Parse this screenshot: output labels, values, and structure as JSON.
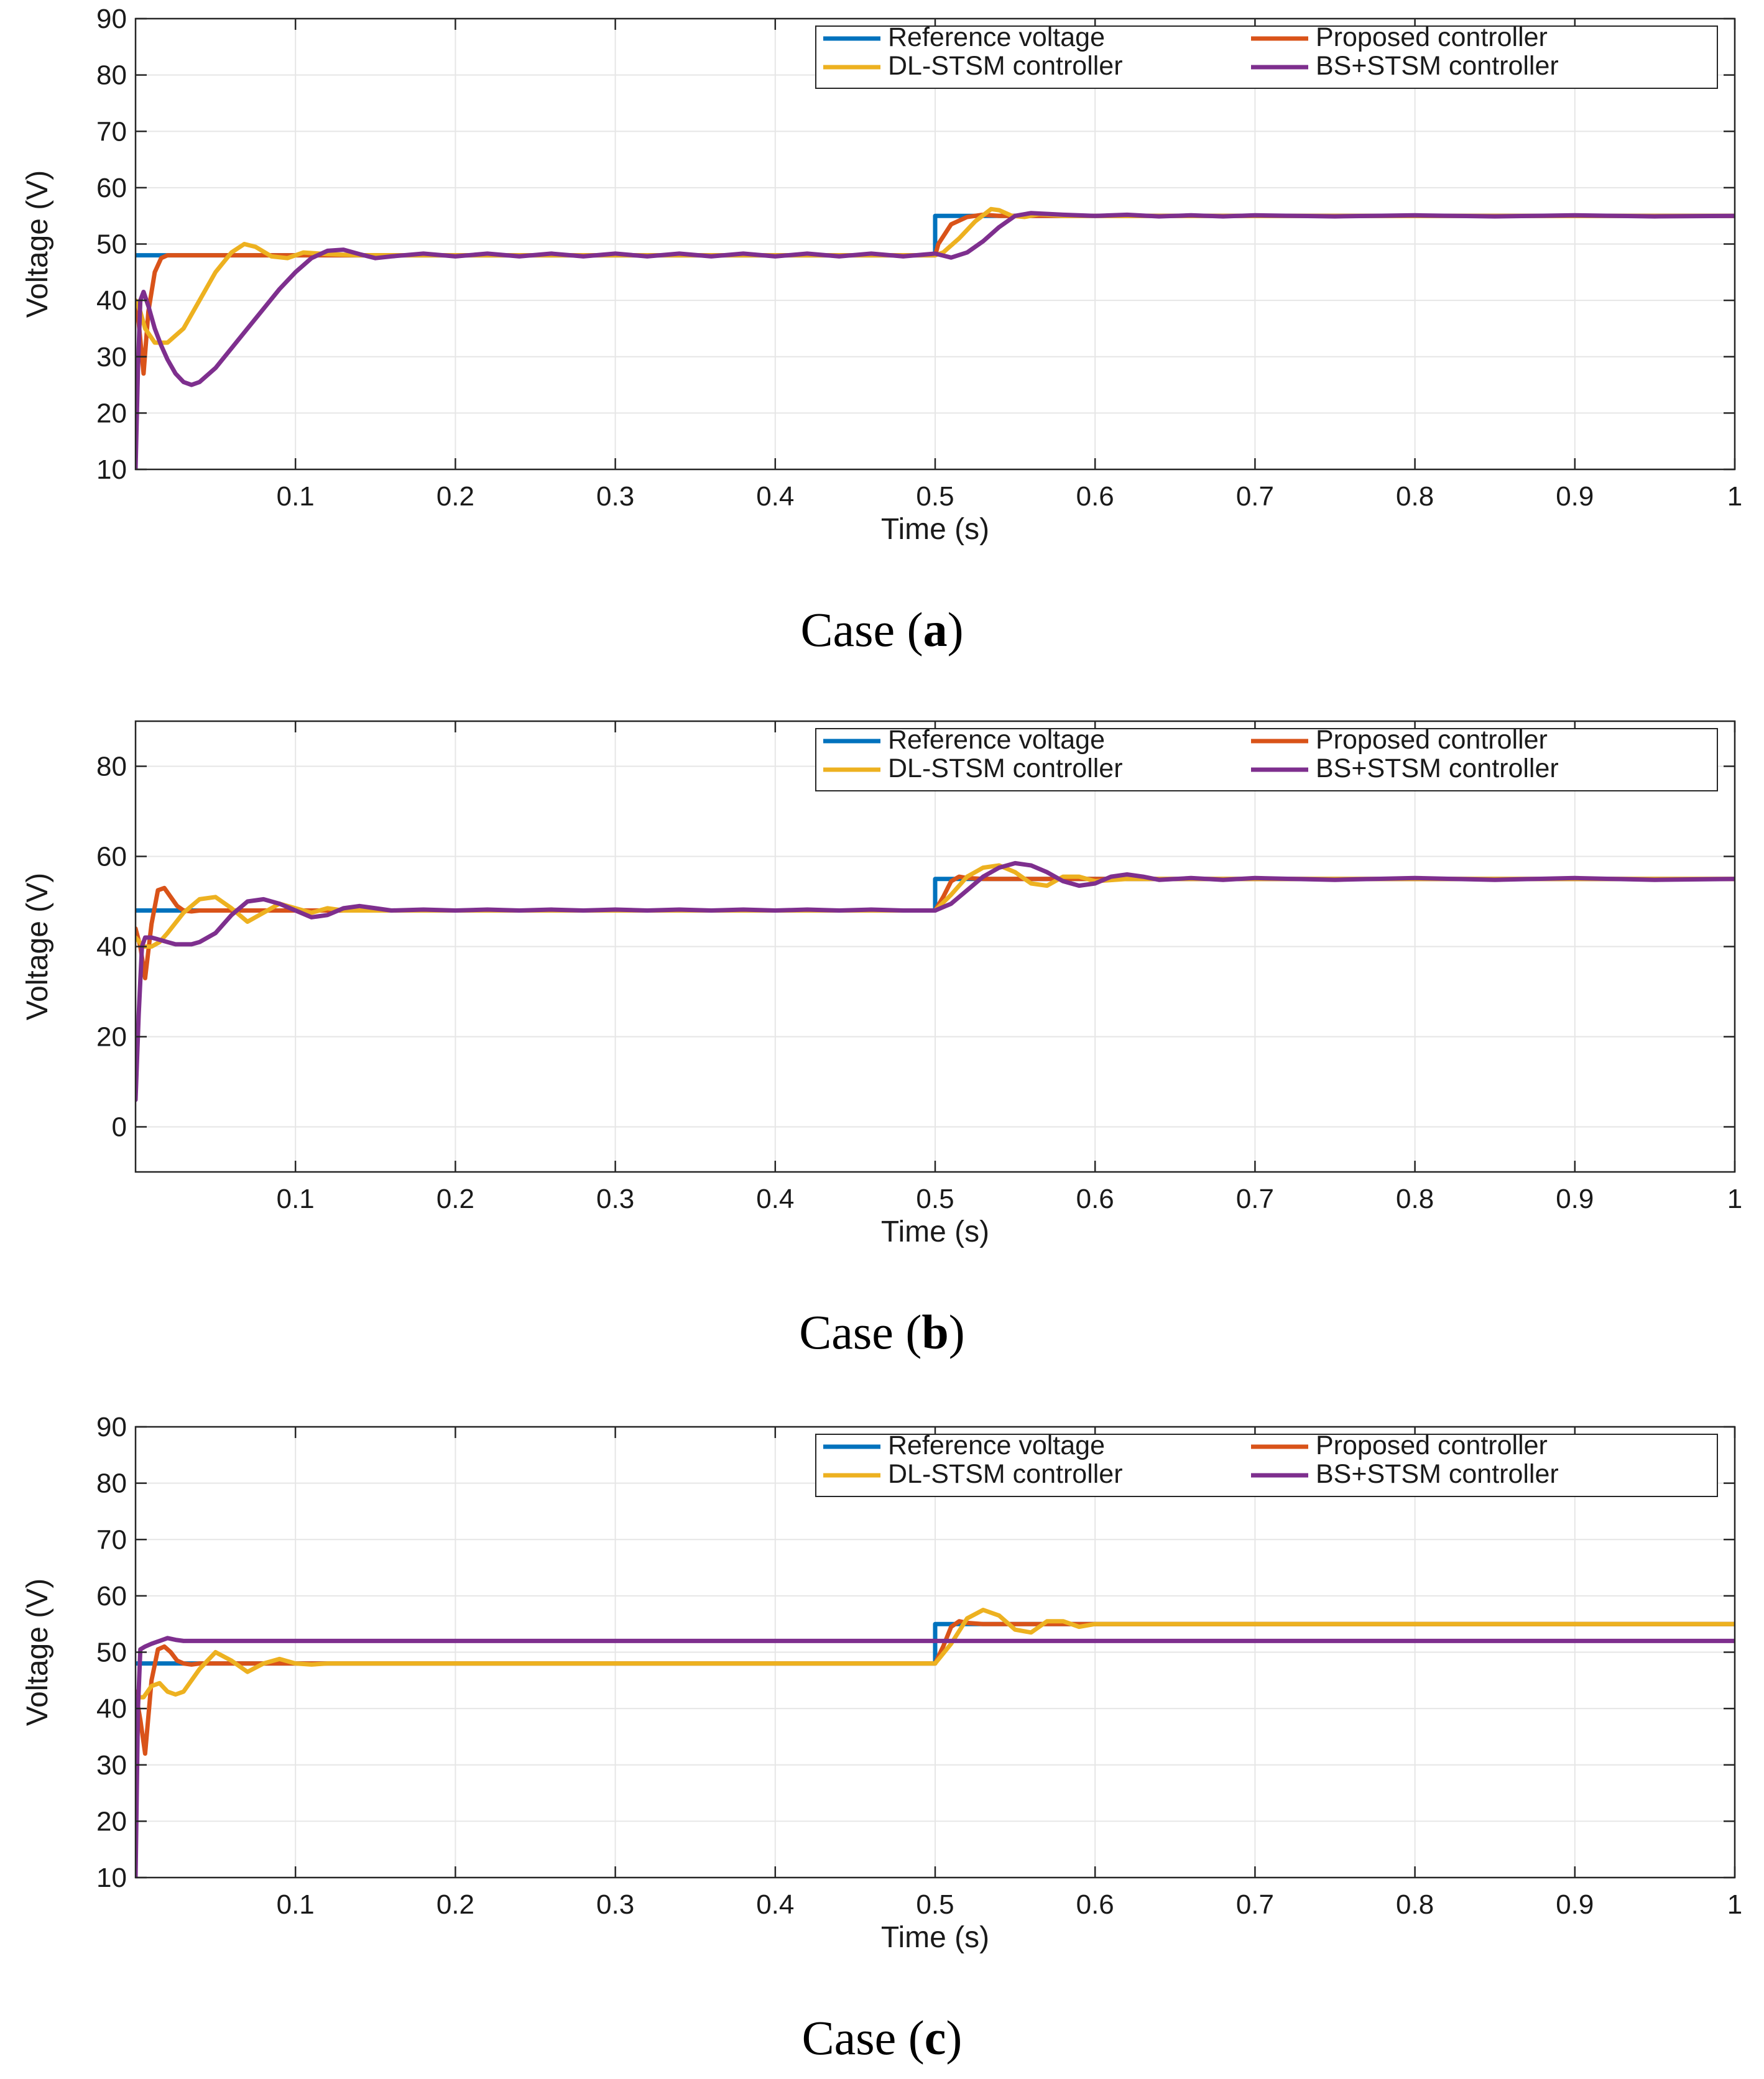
{
  "colors": {
    "reference": "#0072BD",
    "proposed": "#D95319",
    "dl_stsm": "#EDB120",
    "bs_stsm": "#7E2F8E"
  },
  "chart_data": [
    {
      "type": "line",
      "caption_prefix": "Case (",
      "caption_letter": "a",
      "caption_suffix": ")",
      "xlabel": "Time (s)",
      "ylabel": "Voltage (V)",
      "xlim": [
        0,
        1
      ],
      "ylim": [
        10,
        90
      ],
      "xticks": [
        0.1,
        0.2,
        0.3,
        0.4,
        0.5,
        0.6,
        0.7,
        0.8,
        0.9,
        1
      ],
      "xtick_labels": [
        "0.1",
        "0.2",
        "0.3",
        "0.4",
        "0.5",
        "0.6",
        "0.7",
        "0.8",
        "0.9",
        "1"
      ],
      "yticks": [
        10,
        20,
        30,
        40,
        50,
        60,
        70,
        80,
        90
      ],
      "ytick_labels": [
        "10",
        "20",
        "30",
        "40",
        "50",
        "60",
        "70",
        "80",
        "90"
      ],
      "grid": true,
      "legend_position": "top-right",
      "legend": [
        "Reference voltage",
        "Proposed controller",
        "DL-STSM controller",
        "BS+STSM controller"
      ],
      "series": [
        {
          "name": "Reference voltage",
          "x": [
            0,
            0.5,
            0.5,
            1
          ],
          "y": [
            48,
            48,
            55,
            55
          ]
        },
        {
          "name": "Proposed controller",
          "x": [
            0,
            0.002,
            0.005,
            0.008,
            0.012,
            0.016,
            0.02,
            0.03,
            0.5,
            0.502,
            0.51,
            0.52,
            0.53,
            0.54,
            0.55,
            0.56,
            1
          ],
          "y": [
            39,
            36,
            27,
            38,
            45,
            47.5,
            48,
            48,
            48,
            50,
            53.5,
            54.8,
            55.2,
            55,
            55,
            55,
            55
          ]
        },
        {
          "name": "DL-STSM controller",
          "x": [
            0,
            0.003,
            0.006,
            0.012,
            0.02,
            0.03,
            0.04,
            0.05,
            0.06,
            0.068,
            0.075,
            0.085,
            0.095,
            0.105,
            0.12,
            0.14,
            0.5,
            0.505,
            0.515,
            0.525,
            0.535,
            0.54,
            0.548,
            0.556,
            0.565,
            0.58,
            1
          ],
          "y": [
            40,
            38,
            35,
            32.5,
            32.5,
            35,
            40,
            45,
            48.5,
            50,
            49.5,
            47.8,
            47.5,
            48.5,
            48.2,
            48,
            48,
            48.5,
            51,
            54,
            56.2,
            56,
            55,
            54.8,
            55.3,
            55,
            55
          ]
        },
        {
          "name": "BS+STSM controller",
          "x": [
            0,
            0.0015,
            0.003,
            0.005,
            0.008,
            0.012,
            0.016,
            0.02,
            0.025,
            0.03,
            0.035,
            0.04,
            0.05,
            0.06,
            0.07,
            0.08,
            0.09,
            0.1,
            0.11,
            0.12,
            0.13,
            0.14,
            0.15,
            0.16,
            0.18,
            0.2,
            0.22,
            0.24,
            0.26,
            0.28,
            0.3,
            0.32,
            0.34,
            0.36,
            0.38,
            0.4,
            0.42,
            0.44,
            0.46,
            0.48,
            0.5,
            0.51,
            0.52,
            0.53,
            0.54,
            0.55,
            0.56,
            0.58,
            0.6,
            0.62,
            0.64,
            0.66,
            0.68,
            0.7,
            0.75,
            0.8,
            0.85,
            0.9,
            0.95,
            1
          ],
          "y": [
            10,
            28,
            40,
            41.5,
            39,
            35,
            32,
            29.5,
            27,
            25.5,
            25,
            25.5,
            28,
            31.5,
            35,
            38.5,
            42,
            45,
            47.5,
            48.8,
            49,
            48.2,
            47.5,
            47.8,
            48.3,
            47.8,
            48.3,
            47.8,
            48.3,
            47.8,
            48.3,
            47.8,
            48.3,
            47.8,
            48.3,
            47.8,
            48.3,
            47.8,
            48.3,
            47.8,
            48.3,
            47.6,
            48.5,
            50.5,
            53,
            55,
            55.5,
            55.2,
            55,
            55.2,
            54.9,
            55.1,
            54.9,
            55.1,
            54.9,
            55.1,
            54.9,
            55.1,
            54.9,
            55
          ]
        }
      ]
    },
    {
      "type": "line",
      "caption_prefix": "Case (",
      "caption_letter": "b",
      "caption_suffix": ")",
      "xlabel": "Time (s)",
      "ylabel": "Voltage (V)",
      "xlim": [
        0,
        1
      ],
      "ylim": [
        -10,
        90
      ],
      "xticks": [
        0.1,
        0.2,
        0.3,
        0.4,
        0.5,
        0.6,
        0.7,
        0.8,
        0.9,
        1
      ],
      "xtick_labels": [
        "0.1",
        "0.2",
        "0.3",
        "0.4",
        "0.5",
        "0.6",
        "0.7",
        "0.8",
        "0.9",
        "1"
      ],
      "yticks": [
        0,
        20,
        40,
        60,
        80
      ],
      "ytick_labels": [
        "0",
        "20",
        "40",
        "60",
        "80"
      ],
      "grid": true,
      "legend_position": "top-right",
      "legend": [
        "Reference voltage",
        "Proposed controller",
        "DL-STSM controller",
        "BS+STSM controller"
      ],
      "series": [
        {
          "name": "Reference voltage",
          "x": [
            0,
            0.5,
            0.5,
            1
          ],
          "y": [
            48,
            48,
            55,
            55
          ]
        },
        {
          "name": "Proposed controller",
          "x": [
            0,
            0.003,
            0.006,
            0.01,
            0.014,
            0.018,
            0.022,
            0.026,
            0.03,
            0.035,
            0.04,
            0.05,
            0.5,
            0.505,
            0.51,
            0.515,
            0.52,
            0.53,
            0.54,
            1
          ],
          "y": [
            44,
            40,
            33,
            45,
            52.5,
            53,
            51,
            49,
            48,
            47.8,
            48,
            48,
            48,
            51,
            54.5,
            55.5,
            55.2,
            55,
            55,
            55
          ]
        },
        {
          "name": "DL-STSM controller",
          "x": [
            0,
            0.005,
            0.01,
            0.015,
            0.02,
            0.03,
            0.04,
            0.05,
            0.06,
            0.07,
            0.08,
            0.09,
            0.1,
            0.11,
            0.12,
            0.13,
            0.15,
            0.5,
            0.51,
            0.52,
            0.53,
            0.54,
            0.55,
            0.56,
            0.57,
            0.58,
            0.59,
            0.6,
            0.62,
            1
          ],
          "y": [
            42,
            40,
            40,
            41,
            43,
            47.5,
            50.5,
            51,
            48.5,
            45.5,
            47.5,
            49.5,
            48.5,
            47.5,
            48.5,
            48,
            48,
            48,
            51.5,
            55.5,
            57.5,
            58,
            56.5,
            54,
            53.5,
            55.5,
            55.5,
            54.5,
            55,
            55
          ]
        },
        {
          "name": "BS+STSM controller",
          "x": [
            0,
            0.002,
            0.004,
            0.006,
            0.01,
            0.015,
            0.02,
            0.025,
            0.03,
            0.035,
            0.04,
            0.05,
            0.06,
            0.07,
            0.08,
            0.09,
            0.1,
            0.11,
            0.12,
            0.13,
            0.14,
            0.15,
            0.16,
            0.18,
            0.2,
            0.22,
            0.24,
            0.26,
            0.28,
            0.3,
            0.32,
            0.34,
            0.36,
            0.38,
            0.4,
            0.42,
            0.44,
            0.46,
            0.48,
            0.5,
            0.51,
            0.52,
            0.53,
            0.54,
            0.55,
            0.56,
            0.57,
            0.58,
            0.59,
            0.6,
            0.61,
            0.62,
            0.63,
            0.64,
            0.66,
            0.68,
            0.7,
            0.75,
            0.8,
            0.85,
            0.9,
            0.95,
            1
          ],
          "y": [
            6,
            25,
            40,
            42,
            42,
            41.5,
            41,
            40.5,
            40.5,
            40.5,
            41,
            43,
            47,
            50,
            50.5,
            49.5,
            48,
            46.5,
            47,
            48.5,
            49,
            48.5,
            48,
            48.2,
            48,
            48.2,
            48,
            48.2,
            48,
            48.2,
            48,
            48.2,
            48,
            48.2,
            48,
            48.2,
            48,
            48.2,
            48,
            48,
            49.5,
            52.5,
            55.5,
            57.5,
            58.5,
            58,
            56.5,
            54.5,
            53.5,
            54,
            55.5,
            56,
            55.5,
            54.8,
            55.2,
            54.8,
            55.2,
            54.8,
            55.2,
            54.8,
            55.2,
            54.8,
            55
          ]
        }
      ]
    },
    {
      "type": "line",
      "caption_prefix": "Case (",
      "caption_letter": "c",
      "caption_suffix": ")",
      "xlabel": "Time (s)",
      "ylabel": "Voltage (V)",
      "xlim": [
        0,
        1
      ],
      "ylim": [
        10,
        90
      ],
      "xticks": [
        0.1,
        0.2,
        0.3,
        0.4,
        0.5,
        0.6,
        0.7,
        0.8,
        0.9,
        1
      ],
      "xtick_labels": [
        "0.1",
        "0.2",
        "0.3",
        "0.4",
        "0.5",
        "0.6",
        "0.7",
        "0.8",
        "0.9",
        "1"
      ],
      "yticks": [
        10,
        20,
        30,
        40,
        50,
        60,
        70,
        80,
        90
      ],
      "ytick_labels": [
        "10",
        "20",
        "30",
        "40",
        "50",
        "60",
        "70",
        "80",
        "90"
      ],
      "grid": true,
      "legend_position": "top-right",
      "legend": [
        "Reference voltage",
        "Proposed controller",
        "DL-STSM controller",
        "BS+STSM controller"
      ],
      "series": [
        {
          "name": "Reference voltage",
          "x": [
            0,
            0.5,
            0.5,
            1
          ],
          "y": [
            48,
            48,
            55,
            55
          ]
        },
        {
          "name": "Proposed controller",
          "x": [
            0,
            0.003,
            0.006,
            0.01,
            0.014,
            0.018,
            0.022,
            0.026,
            0.03,
            0.035,
            0.04,
            0.5,
            0.505,
            0.51,
            0.515,
            0.52,
            0.53,
            1
          ],
          "y": [
            43,
            38,
            32,
            45,
            50.5,
            51,
            50,
            48.5,
            48,
            47.8,
            48,
            48,
            51,
            54.5,
            55.5,
            55.2,
            55,
            55
          ]
        },
        {
          "name": "DL-STSM controller",
          "x": [
            0,
            0.005,
            0.01,
            0.015,
            0.02,
            0.025,
            0.03,
            0.04,
            0.05,
            0.06,
            0.07,
            0.08,
            0.09,
            0.1,
            0.11,
            0.12,
            0.5,
            0.51,
            0.52,
            0.53,
            0.54,
            0.55,
            0.56,
            0.57,
            0.58,
            0.59,
            0.6,
            0.62,
            1
          ],
          "y": [
            42,
            42,
            44,
            44.5,
            43,
            42.5,
            43,
            47,
            50,
            48.5,
            46.5,
            48,
            48.8,
            48,
            47.8,
            48,
            48,
            51.5,
            56,
            57.5,
            56.5,
            54,
            53.5,
            55.5,
            55.5,
            54.5,
            55,
            55,
            55
          ]
        },
        {
          "name": "BS+STSM controller",
          "x": [
            0,
            0.0015,
            0.003,
            0.006,
            0.01,
            0.015,
            0.02,
            0.025,
            0.03,
            0.04,
            0.06,
            0.1,
            1
          ],
          "y": [
            10,
            40,
            50.5,
            51,
            51.5,
            52,
            52.5,
            52.2,
            52,
            52,
            52,
            52,
            52
          ]
        }
      ]
    }
  ]
}
